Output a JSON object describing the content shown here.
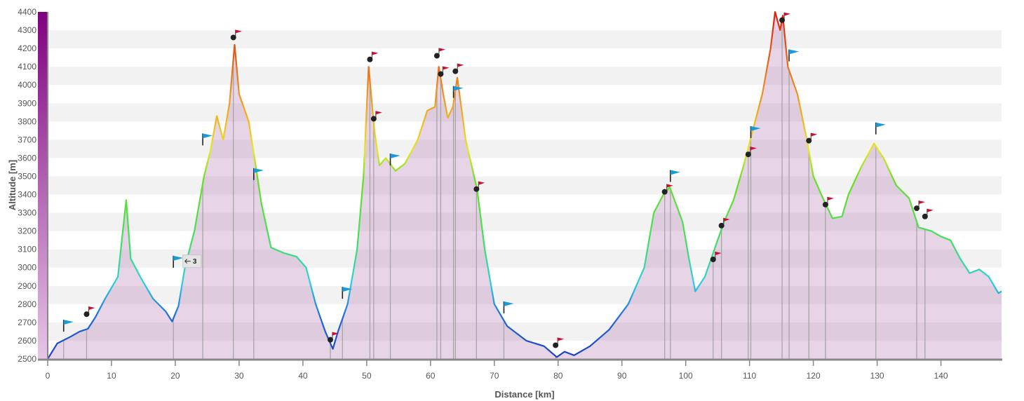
{
  "chart_data": {
    "type": "area",
    "title": "",
    "xlabel": "Distance [km]",
    "ylabel": "Altitude [m]",
    "xlim": [
      0,
      149.5
    ],
    "ylim": [
      2500,
      4400
    ],
    "x_ticks": [
      0,
      10,
      20,
      30,
      40,
      50,
      60,
      70,
      80,
      90,
      100,
      110,
      120,
      130,
      140
    ],
    "y_ticks": [
      2500,
      2600,
      2700,
      2800,
      2900,
      3000,
      3100,
      3200,
      3300,
      3400,
      3500,
      3600,
      3700,
      3800,
      3900,
      4000,
      4100,
      4200,
      4300,
      4400
    ],
    "grid": "horizontal banded",
    "legend": "none",
    "color_scale": "line colored by altitude (blue low, cyan, green, yellow, orange, red high)",
    "series": [
      {
        "points": [
          [
            0,
            2500
          ],
          [
            1.5,
            2585
          ],
          [
            3.5,
            2620
          ],
          [
            5,
            2650
          ],
          [
            6.3,
            2665
          ],
          [
            7.5,
            2730
          ],
          [
            9,
            2830
          ],
          [
            11,
            2950
          ],
          [
            12.3,
            3370
          ],
          [
            13,
            3050
          ],
          [
            14.5,
            2950
          ],
          [
            16.5,
            2830
          ],
          [
            18.5,
            2760
          ],
          [
            19.5,
            2705
          ],
          [
            20.5,
            2790
          ],
          [
            21.5,
            3000
          ],
          [
            23,
            3200
          ],
          [
            24.5,
            3500
          ],
          [
            25.5,
            3640
          ],
          [
            26.5,
            3830
          ],
          [
            27.5,
            3700
          ],
          [
            28.5,
            3900
          ],
          [
            29.3,
            4220
          ],
          [
            30,
            3950
          ],
          [
            31.5,
            3800
          ],
          [
            32.5,
            3580
          ],
          [
            33.5,
            3350
          ],
          [
            35,
            3110
          ],
          [
            37,
            3080
          ],
          [
            39,
            3060
          ],
          [
            40.5,
            3000
          ],
          [
            42,
            2800
          ],
          [
            43.5,
            2650
          ],
          [
            44.7,
            2555
          ],
          [
            45.5,
            2650
          ],
          [
            47,
            2800
          ],
          [
            48.5,
            3100
          ],
          [
            49.5,
            3500
          ],
          [
            50.3,
            4100
          ],
          [
            51.2,
            3750
          ],
          [
            52,
            3560
          ],
          [
            53,
            3600
          ],
          [
            54.5,
            3530
          ],
          [
            56,
            3570
          ],
          [
            58,
            3700
          ],
          [
            59.5,
            3860
          ],
          [
            60.7,
            3880
          ],
          [
            61.3,
            4100
          ],
          [
            62,
            3950
          ],
          [
            62.7,
            3820
          ],
          [
            63.5,
            3880
          ],
          [
            64.2,
            4040
          ],
          [
            65.5,
            3700
          ],
          [
            67.3,
            3430
          ],
          [
            68.5,
            3100
          ],
          [
            70,
            2800
          ],
          [
            72,
            2680
          ],
          [
            75,
            2600
          ],
          [
            77.8,
            2570
          ],
          [
            79.8,
            2510
          ],
          [
            81,
            2540
          ],
          [
            82.5,
            2520
          ],
          [
            85,
            2570
          ],
          [
            88,
            2660
          ],
          [
            91,
            2800
          ],
          [
            93.5,
            3000
          ],
          [
            95,
            3300
          ],
          [
            96.5,
            3400
          ],
          [
            97.5,
            3440
          ],
          [
            99.5,
            3250
          ],
          [
            100.5,
            3050
          ],
          [
            101.5,
            2870
          ],
          [
            103,
            2950
          ],
          [
            104.5,
            3100
          ],
          [
            106,
            3250
          ],
          [
            107.5,
            3370
          ],
          [
            109,
            3550
          ],
          [
            110.5,
            3750
          ],
          [
            112,
            3950
          ],
          [
            113.3,
            4200
          ],
          [
            114,
            4400
          ],
          [
            114.8,
            4300
          ],
          [
            115.2,
            4380
          ],
          [
            116,
            4100
          ],
          [
            117.5,
            3950
          ],
          [
            119,
            3700
          ],
          [
            120,
            3500
          ],
          [
            121.5,
            3380
          ],
          [
            123,
            3270
          ],
          [
            124.5,
            3280
          ],
          [
            125.5,
            3400
          ],
          [
            127.5,
            3550
          ],
          [
            129.5,
            3680
          ],
          [
            131,
            3600
          ],
          [
            133,
            3450
          ],
          [
            135,
            3380
          ],
          [
            136.5,
            3220
          ],
          [
            138.5,
            3200
          ],
          [
            140,
            3170
          ],
          [
            141.5,
            3150
          ],
          [
            143,
            3050
          ],
          [
            144.5,
            2970
          ],
          [
            146,
            2990
          ],
          [
            147.5,
            2950
          ],
          [
            149,
            2860
          ],
          [
            149.5,
            2870
          ]
        ]
      }
    ],
    "markers": [
      {
        "kind": "blue-flag",
        "x": 2.5,
        "y": 2680
      },
      {
        "kind": "red-flag",
        "x": 6.1,
        "y": 2745
      },
      {
        "kind": "blue-flag",
        "x": 19.7,
        "y": 3030
      },
      {
        "kind": "blue-flag",
        "x": 24.3,
        "y": 3700
      },
      {
        "kind": "red-flag",
        "x": 29.1,
        "y": 4260
      },
      {
        "kind": "blue-flag",
        "x": 32.3,
        "y": 3510
      },
      {
        "kind": "red-flag",
        "x": 44.3,
        "y": 2605
      },
      {
        "kind": "blue-flag",
        "x": 46.2,
        "y": 2860
      },
      {
        "kind": "red-flag",
        "x": 50.5,
        "y": 4140
      },
      {
        "kind": "red-flag",
        "x": 51.1,
        "y": 3815
      },
      {
        "kind": "blue-flag",
        "x": 53.7,
        "y": 3590
      },
      {
        "kind": "red-flag",
        "x": 61.0,
        "y": 4160
      },
      {
        "kind": "red-flag",
        "x": 61.6,
        "y": 4060
      },
      {
        "kind": "blue-flag",
        "x": 63.6,
        "y": 3960
      },
      {
        "kind": "red-flag",
        "x": 63.9,
        "y": 4075
      },
      {
        "kind": "red-flag",
        "x": 67.2,
        "y": 3430
      },
      {
        "kind": "blue-flag",
        "x": 71.5,
        "y": 2780
      },
      {
        "kind": "red-flag",
        "x": 79.6,
        "y": 2575
      },
      {
        "kind": "red-flag",
        "x": 96.7,
        "y": 3415
      },
      {
        "kind": "blue-flag",
        "x": 97.6,
        "y": 3500
      },
      {
        "kind": "red-flag",
        "x": 104.3,
        "y": 3045
      },
      {
        "kind": "red-flag",
        "x": 105.6,
        "y": 3230
      },
      {
        "kind": "red-flag",
        "x": 109.8,
        "y": 3620
      },
      {
        "kind": "blue-flag",
        "x": 110.2,
        "y": 3740
      },
      {
        "kind": "red-flag",
        "x": 115.1,
        "y": 4355
      },
      {
        "kind": "blue-flag",
        "x": 116.2,
        "y": 4160
      },
      {
        "kind": "red-flag",
        "x": 119.3,
        "y": 3695
      },
      {
        "kind": "red-flag",
        "x": 121.9,
        "y": 3345
      },
      {
        "kind": "blue-flag",
        "x": 129.8,
        "y": 3760
      },
      {
        "kind": "red-flag",
        "x": 136.2,
        "y": 3325
      },
      {
        "kind": "red-flag",
        "x": 137.5,
        "y": 3280
      }
    ],
    "annotations": [
      {
        "text": "3",
        "x": 22.5,
        "y": 3035
      }
    ]
  },
  "colors": {
    "fill": "#b070b0",
    "band_light": "#f2f2f2",
    "band_white": "#ffffff",
    "axis": "#888888",
    "scale_top": "#800080",
    "scale_bottom": "#e6c6e6",
    "blue_flag": "#1a9bd7",
    "red_flag": "#c8102e",
    "waypoint_dot": "#222222",
    "line_low": "#1a3fbf",
    "line_high": "#e03010"
  }
}
